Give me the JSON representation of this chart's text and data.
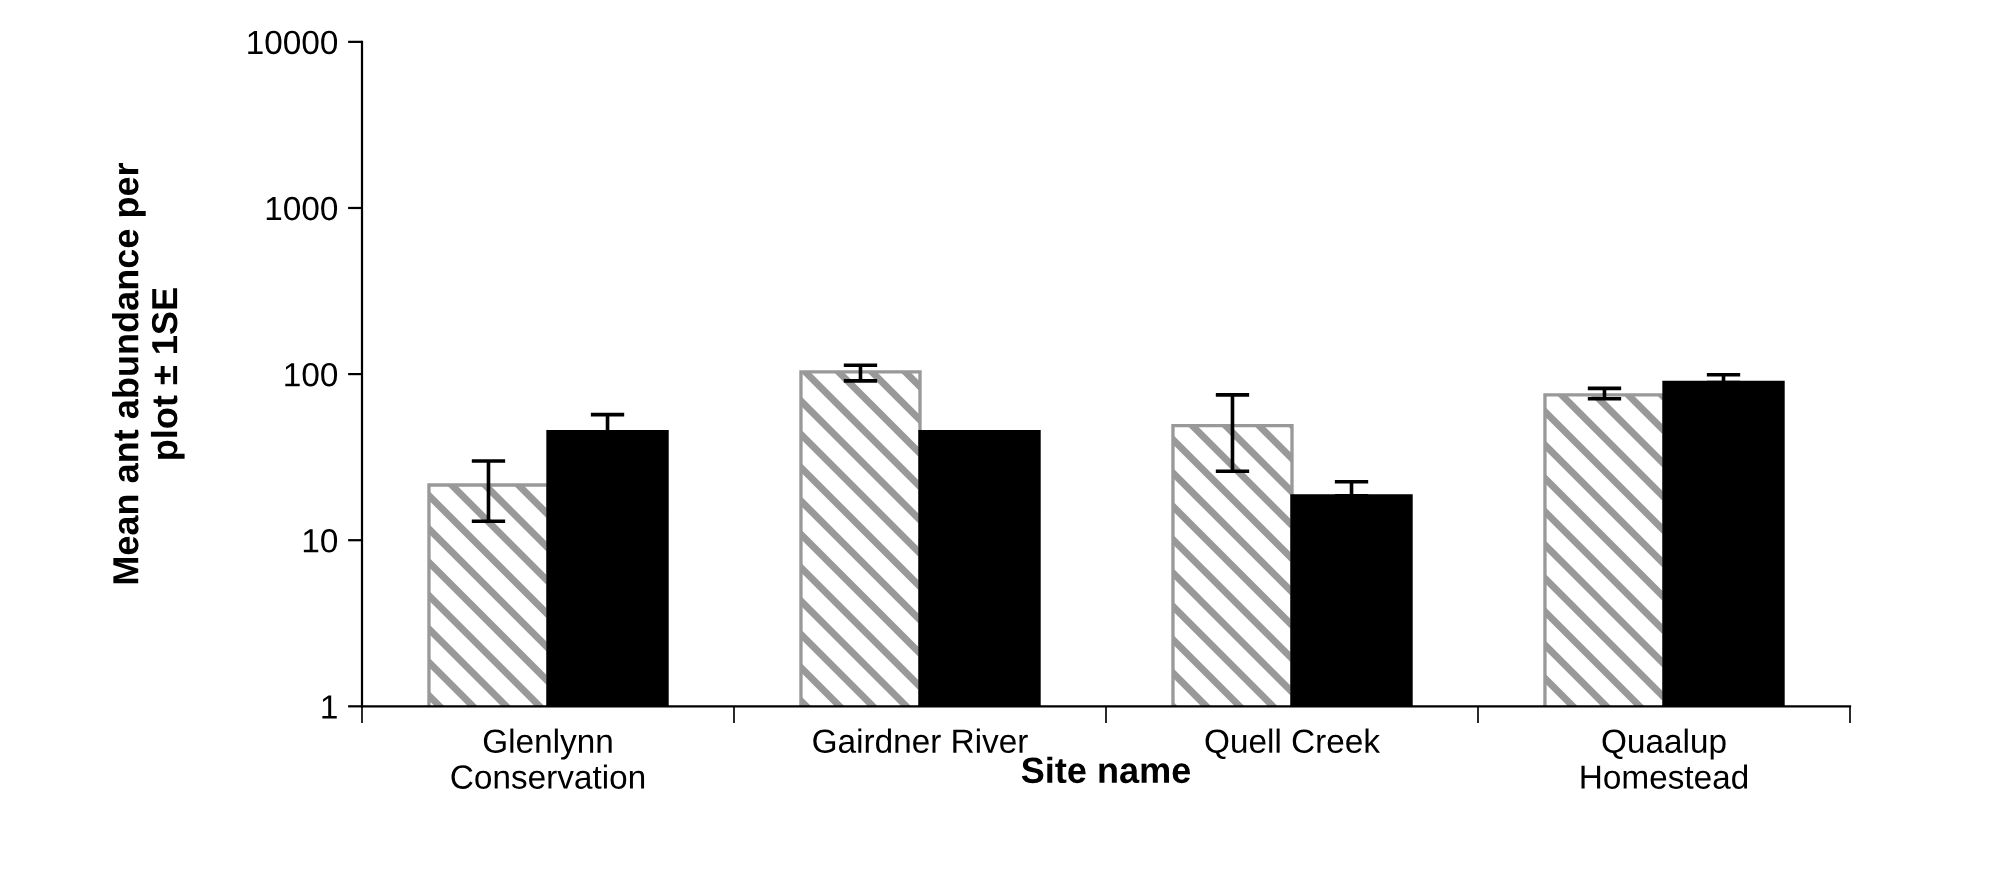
{
  "chart_data": {
    "type": "bar",
    "xlabel": "Site name",
    "ylabel": "Mean ant abundance per\nplot ± 1SE",
    "categories": [
      "Glenlynn\nConservation",
      "Gairdner River",
      "Quell Creek",
      "Quaalup\nHomestead"
    ],
    "series": [
      {
        "color": "#999999",
        "values": [
          21.5,
          103,
          49,
          75
        ],
        "errors": [
          [
            13,
            30
          ],
          [
            91,
            113
          ],
          [
            26,
            75
          ],
          [
            71,
            82
          ]
        ]
      },
      {
        "color": "#000000",
        "values": [
          45,
          45,
          18.5,
          89
        ],
        "errors": [
          [
            45,
            57
          ],
          null,
          [
            18.5,
            22.5
          ],
          [
            89,
            99
          ]
        ]
      }
    ],
    "log": "y",
    "ylim": [
      1,
      10000
    ],
    "yticks": [
      1,
      10,
      100,
      1000,
      10000
    ],
    "grid": false,
    "legend": false
  }
}
